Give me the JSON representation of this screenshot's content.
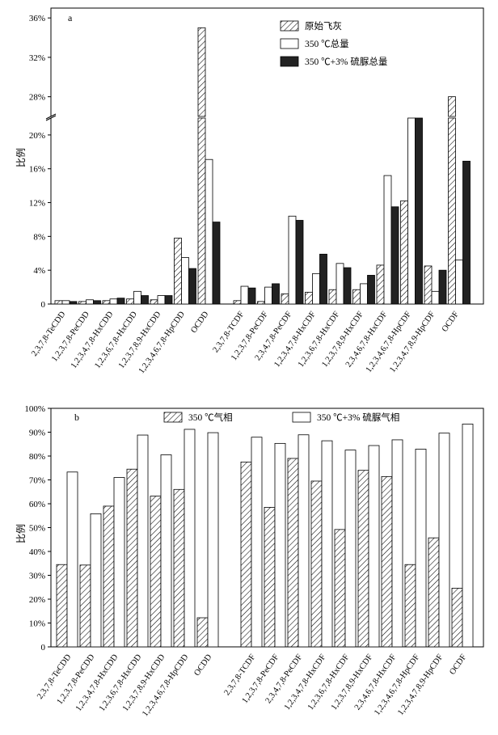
{
  "chart_data": [
    {
      "panel": "a",
      "type": "bar",
      "ylabel": "比例",
      "legend_position": "top-right",
      "y_axis_break": [
        22,
        26
      ],
      "yticks_lower": [
        "0",
        "4%",
        "8%",
        "12%",
        "16%",
        "20%"
      ],
      "yticks_upper": [
        "28%",
        "32%",
        "36%"
      ],
      "categories": [
        "2,3,7,8-TeCDD",
        "1,2,3,7,8-PeCDD",
        "1,2,3,4,7,8-HxCDD",
        "1,2,3,6,7,8-HxCDD",
        "1,2,3,7,8,9-HxCDD",
        "1,2,3,4,6,7,8-HpCDD",
        "OCDD",
        "2,3,7,8-TCDF",
        "1,2,3,7,8-PeCDF",
        "2,3,4,7,8-PeCDF",
        "1,2,3,4,7,8-HxCDF",
        "1,2,3,6,7,8-HxCDF",
        "1,2,3,7,8,9-HxCDF",
        "2,3,4,6,7,8-HxCDF",
        "1,2,3,4,6,7,8-HpCDF",
        "1,2,3,4,7,8,9-HpCDF",
        "OCDF"
      ],
      "series": [
        {
          "name": "原始飞灰",
          "style": "hatched",
          "values": [
            0.4,
            0.3,
            0.4,
            0.6,
            0.5,
            7.8,
            35.0,
            0.4,
            0.3,
            1.2,
            1.4,
            1.7,
            1.7,
            4.6,
            12.2,
            4.5,
            28.0
          ]
        },
        {
          "name": "350 ℃总量",
          "style": "white",
          "values": [
            0.4,
            0.5,
            0.6,
            1.5,
            1.0,
            5.5,
            17.1,
            2.1,
            2.0,
            10.4,
            3.6,
            4.8,
            2.4,
            15.2,
            23.8,
            1.5,
            5.2
          ]
        },
        {
          "name": "350 ℃+3% 硫脲总量",
          "style": "black",
          "values": [
            0.3,
            0.4,
            0.7,
            1.0,
            1.0,
            4.2,
            9.7,
            1.9,
            2.4,
            9.9,
            5.9,
            4.3,
            3.4,
            11.5,
            22.4,
            4.0,
            16.9
          ]
        }
      ]
    },
    {
      "panel": "b",
      "type": "bar",
      "ylabel": "比例",
      "ylim": [
        0,
        100
      ],
      "legend_position": "top",
      "yticks": [
        "0",
        "10%",
        "20%",
        "30%",
        "40%",
        "50%",
        "60%",
        "70%",
        "80%",
        "90%",
        "100%"
      ],
      "categories": [
        "2,3,7,8-TeCDD",
        "1,2,3,7,8-PeCDD",
        "1,2,3,4,7,8-HxCDD",
        "1,2,3,6,7,8-HxCDD",
        "1,2,3,7,8,9-HxCDD",
        "1,2,3,4,6,7,8-HpCDD",
        "OCDD",
        "2,3,7,8-TCDF",
        "1,2,3,7,8-PeCDF",
        "2,3,4,7,8-PeCDF",
        "1,2,3,4,7,8-HxCDF",
        "1,2,3,6,7,8-HxCDF",
        "1,2,3,7,8,9-HxCDF",
        "2,3,4,6,7,8-HxCDF",
        "1,2,3,4,6,7,8-HpCDF",
        "1,2,3,4,7,8,9-HpCDF",
        "OCDF"
      ],
      "series": [
        {
          "name": "350 ℃气相",
          "style": "hatched",
          "values": [
            34.5,
            34.3,
            59.0,
            74.5,
            63.2,
            66.0,
            12.2,
            77.5,
            58.5,
            79.0,
            69.5,
            49.2,
            74.0,
            71.4,
            34.5,
            45.7,
            24.6
          ]
        },
        {
          "name": "350 ℃+3% 硫脲气相",
          "style": "white",
          "values": [
            73.3,
            55.8,
            71.0,
            88.8,
            80.5,
            91.2,
            89.8,
            87.9,
            85.3,
            88.9,
            86.4,
            82.5,
            84.4,
            86.8,
            82.9,
            89.6,
            93.4
          ]
        }
      ]
    }
  ]
}
